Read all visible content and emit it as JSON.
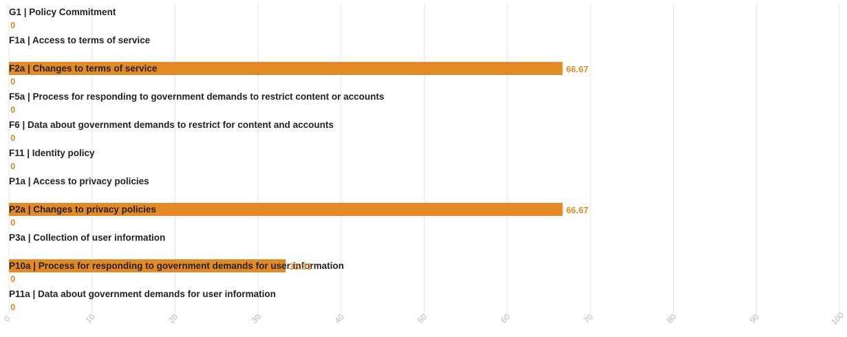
{
  "colors": {
    "bar": "#e38a25",
    "value_label": "#e38a25",
    "category_label": "#222222",
    "grid": "#e4e4e4",
    "tick_label": "#b8b8b8"
  },
  "chart_data": {
    "type": "bar",
    "orientation": "horizontal",
    "title": "",
    "xlabel": "",
    "ylabel": "",
    "xlim": [
      0,
      100
    ],
    "grid": true,
    "x_ticks": [
      0,
      10,
      20,
      30,
      40,
      50,
      60,
      70,
      80,
      90,
      100
    ],
    "categories": [
      "G1 | Policy Commitment",
      "F1a | Access to terms of service",
      "F2a | Changes to terms of service",
      "F5a | Process for responding to government demands to restrict content or accounts",
      "F6 | Data about government demands to restrict for content and accounts",
      "F11 | Identity policy",
      "P1a | Access to privacy policies",
      "P2a | Changes to privacy policies",
      "P3a | Collection of user information",
      "P10a | Process for responding to government demands for user information",
      "P11a | Data about government demands for user information"
    ],
    "values": [
      0,
      66.67,
      0,
      0,
      0,
      0,
      66.67,
      0,
      33.33,
      0,
      0
    ],
    "value_labels": [
      "0",
      "66.67",
      "0",
      "0",
      "0",
      "0",
      "66.67",
      "0",
      "33.33",
      "0",
      "0"
    ]
  }
}
